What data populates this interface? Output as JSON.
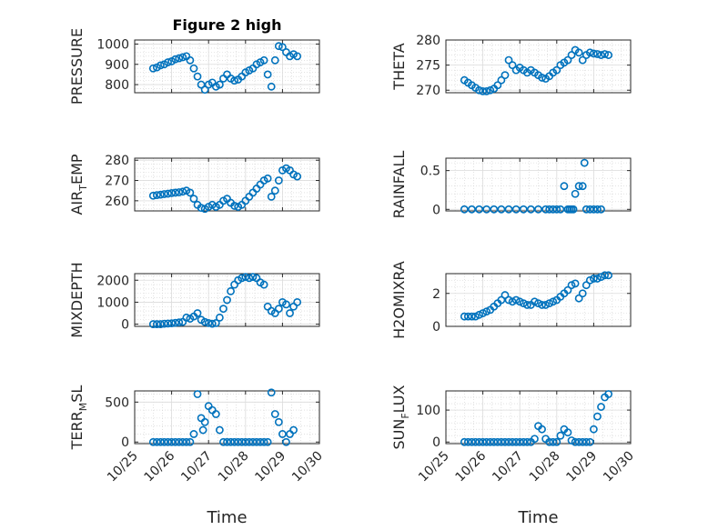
{
  "figure": {
    "title": "Figure 2 high"
  },
  "colors": {
    "marker": "#0072BD",
    "axes": "#262626",
    "grid": "#d0d0d0",
    "background": "#ffffff"
  },
  "chart_data": [
    {
      "type": "scatter",
      "title": "Figure 2 high",
      "ylabel": "PRESSURE",
      "ylabel_main": "PRESSURE",
      "ylabel_sub": "",
      "ylabel_tail": "",
      "xlabel": "",
      "xlim": [
        25,
        30
      ],
      "ylim": [
        760,
        1020
      ],
      "yticks": [
        800,
        900,
        1000
      ],
      "ytick_labels": [
        "800",
        "900",
        "1000"
      ],
      "xticks": [
        25,
        26,
        27,
        28,
        29,
        30
      ],
      "xtick_labels": [
        "10/25",
        "10/26",
        "10/27",
        "10/28",
        "10/29",
        "10/30"
      ],
      "show_xtick_labels": false,
      "grid": true,
      "x": [
        25.5,
        25.6,
        25.7,
        25.8,
        25.9,
        26.0,
        26.1,
        26.2,
        26.3,
        26.4,
        26.5,
        26.6,
        26.7,
        26.8,
        26.9,
        27.0,
        27.1,
        27.2,
        27.3,
        27.4,
        27.5,
        27.6,
        27.7,
        27.8,
        27.9,
        28.0,
        28.1,
        28.2,
        28.3,
        28.4,
        28.5,
        28.6,
        28.7,
        28.8,
        28.9,
        29.0,
        29.1,
        29.2,
        29.3,
        29.4
      ],
      "y": [
        880,
        885,
        895,
        900,
        910,
        915,
        925,
        930,
        935,
        940,
        920,
        880,
        840,
        800,
        775,
        800,
        810,
        790,
        800,
        830,
        850,
        830,
        820,
        825,
        840,
        860,
        870,
        880,
        900,
        910,
        920,
        850,
        790,
        920,
        990,
        985,
        960,
        940,
        950,
        940
      ]
    },
    {
      "type": "scatter",
      "title": "",
      "ylabel": "THETA",
      "ylabel_main": "THETA",
      "ylabel_sub": "",
      "ylabel_tail": "",
      "xlabel": "",
      "xlim": [
        25,
        30
      ],
      "ylim": [
        269.5,
        280
      ],
      "yticks": [
        270,
        275,
        280
      ],
      "ytick_labels": [
        "270",
        "275",
        "280"
      ],
      "xticks": [
        25,
        26,
        27,
        28,
        29,
        30
      ],
      "xtick_labels": [
        "10/25",
        "10/26",
        "10/27",
        "10/28",
        "10/29",
        "10/30"
      ],
      "show_xtick_labels": false,
      "grid": true,
      "x": [
        25.5,
        25.6,
        25.7,
        25.8,
        25.9,
        26.0,
        26.1,
        26.2,
        26.3,
        26.4,
        26.5,
        26.6,
        26.7,
        26.8,
        26.9,
        27.0,
        27.1,
        27.2,
        27.3,
        27.4,
        27.5,
        27.6,
        27.7,
        27.8,
        27.9,
        28.0,
        28.1,
        28.2,
        28.3,
        28.4,
        28.5,
        28.6,
        28.7,
        28.8,
        28.9,
        29.0,
        29.1,
        29.2,
        29.3,
        29.4
      ],
      "y": [
        272,
        271.5,
        271,
        270.5,
        270,
        269.8,
        269.8,
        270,
        270.3,
        271,
        272,
        273,
        276,
        275,
        274,
        274.5,
        274,
        273.5,
        274,
        273.5,
        273,
        272.5,
        272.3,
        272.8,
        273.5,
        274,
        275,
        275.5,
        276,
        277,
        278,
        277.5,
        276,
        277,
        277.5,
        277.3,
        277.2,
        277,
        277.2,
        277
      ]
    },
    {
      "type": "scatter",
      "title": "",
      "ylabel": "AIR_TEMP",
      "ylabel_main": "AIR",
      "ylabel_sub": "T",
      "ylabel_tail": "EMP",
      "xlabel": "",
      "xlim": [
        25,
        30
      ],
      "ylim": [
        255,
        281
      ],
      "yticks": [
        260,
        270,
        280
      ],
      "ytick_labels": [
        "260",
        "270",
        "280"
      ],
      "xticks": [
        25,
        26,
        27,
        28,
        29,
        30
      ],
      "xtick_labels": [
        "10/25",
        "10/26",
        "10/27",
        "10/28",
        "10/29",
        "10/30"
      ],
      "show_xtick_labels": false,
      "grid": true,
      "x": [
        25.5,
        25.6,
        25.7,
        25.8,
        25.9,
        26.0,
        26.1,
        26.2,
        26.3,
        26.4,
        26.5,
        26.6,
        26.7,
        26.8,
        26.9,
        27.0,
        27.1,
        27.2,
        27.3,
        27.4,
        27.5,
        27.6,
        27.7,
        27.8,
        27.9,
        28.0,
        28.1,
        28.2,
        28.3,
        28.4,
        28.5,
        28.6,
        28.7,
        28.8,
        28.9,
        29.0,
        29.1,
        29.2,
        29.3,
        29.4
      ],
      "y": [
        262.5,
        262.8,
        263,
        263.3,
        263.5,
        263.8,
        264,
        264.2,
        264.5,
        265,
        264,
        261,
        258,
        256.5,
        256,
        257,
        258,
        257,
        258,
        260,
        261,
        259,
        257.5,
        257,
        258,
        260,
        262,
        264,
        266,
        268,
        270,
        271,
        262,
        265,
        270,
        275,
        276,
        275,
        273,
        272
      ]
    },
    {
      "type": "scatter",
      "title": "",
      "ylabel": "RAINFALL",
      "ylabel_main": "RAINFALL",
      "ylabel_sub": "",
      "ylabel_tail": "",
      "xlabel": "",
      "xlim": [
        25,
        30
      ],
      "ylim": [
        -0.02,
        0.66
      ],
      "yticks": [
        0,
        0.5
      ],
      "ytick_labels": [
        "0",
        "0.5"
      ],
      "xticks": [
        25,
        26,
        27,
        28,
        29,
        30
      ],
      "xtick_labels": [
        "10/25",
        "10/26",
        "10/27",
        "10/28",
        "10/29",
        "10/30"
      ],
      "show_xtick_labels": false,
      "grid": true,
      "x": [
        25.5,
        25.7,
        25.9,
        26.1,
        26.3,
        26.5,
        26.7,
        26.9,
        27.1,
        27.3,
        27.5,
        27.7,
        27.8,
        27.9,
        28.0,
        28.1,
        28.2,
        28.3,
        28.35,
        28.4,
        28.45,
        28.5,
        28.6,
        28.7,
        28.75,
        28.8,
        28.9,
        29.0,
        29.1,
        29.2
      ],
      "y": [
        0,
        0,
        0,
        0,
        0,
        0,
        0,
        0,
        0,
        0,
        0,
        0,
        0,
        0,
        0,
        0,
        0.3,
        0,
        0,
        0,
        0,
        0.2,
        0.3,
        0.3,
        0.6,
        0,
        0,
        0,
        0,
        0
      ]
    },
    {
      "type": "scatter",
      "title": "",
      "ylabel": "MIXDEPTH",
      "ylabel_main": "MIXDEPTH",
      "ylabel_sub": "",
      "ylabel_tail": "",
      "xlabel": "",
      "xlim": [
        25,
        30
      ],
      "ylim": [
        -100,
        2300
      ],
      "yticks": [
        0,
        1000,
        2000
      ],
      "ytick_labels": [
        "0",
        "1000",
        "2000"
      ],
      "xticks": [
        25,
        26,
        27,
        28,
        29,
        30
      ],
      "xtick_labels": [
        "10/25",
        "10/26",
        "10/27",
        "10/28",
        "10/29",
        "10/30"
      ],
      "show_xtick_labels": false,
      "grid": true,
      "x": [
        25.5,
        25.6,
        25.7,
        25.8,
        25.9,
        26.0,
        26.1,
        26.2,
        26.3,
        26.4,
        26.5,
        26.6,
        26.7,
        26.8,
        26.9,
        27.0,
        27.1,
        27.2,
        27.3,
        27.4,
        27.5,
        27.6,
        27.7,
        27.8,
        27.9,
        28.0,
        28.1,
        28.2,
        28.3,
        28.4,
        28.5,
        28.6,
        28.7,
        28.8,
        28.9,
        29.0,
        29.1,
        29.2,
        29.3,
        29.4
      ],
      "y": [
        0,
        0,
        0,
        20,
        30,
        40,
        60,
        80,
        100,
        300,
        250,
        350,
        500,
        200,
        100,
        50,
        20,
        50,
        300,
        700,
        1100,
        1500,
        1800,
        2000,
        2100,
        2150,
        2100,
        2150,
        2100,
        1900,
        1800,
        800,
        600,
        500,
        700,
        1000,
        900,
        500,
        800,
        1000
      ]
    },
    {
      "type": "scatter",
      "title": "",
      "ylabel": "H2OMIXRA",
      "ylabel_main": "H2OMIXRA",
      "ylabel_sub": "",
      "ylabel_tail": "",
      "xlabel": "",
      "xlim": [
        25,
        30
      ],
      "ylim": [
        0,
        3.2
      ],
      "yticks": [
        0,
        2
      ],
      "ytick_labels": [
        "0",
        "2"
      ],
      "xticks": [
        25,
        26,
        27,
        28,
        29,
        30
      ],
      "xtick_labels": [
        "10/25",
        "10/26",
        "10/27",
        "10/28",
        "10/29",
        "10/30"
      ],
      "show_xtick_labels": false,
      "grid": true,
      "x": [
        25.5,
        25.6,
        25.7,
        25.8,
        25.9,
        26.0,
        26.1,
        26.2,
        26.3,
        26.4,
        26.5,
        26.6,
        26.7,
        26.8,
        26.9,
        27.0,
        27.1,
        27.2,
        27.3,
        27.4,
        27.5,
        27.6,
        27.7,
        27.8,
        27.9,
        28.0,
        28.1,
        28.2,
        28.3,
        28.4,
        28.5,
        28.6,
        28.7,
        28.8,
        28.9,
        29.0,
        29.1,
        29.2,
        29.3,
        29.4
      ],
      "y": [
        0.6,
        0.6,
        0.6,
        0.6,
        0.7,
        0.8,
        0.9,
        1.0,
        1.2,
        1.4,
        1.6,
        1.9,
        1.6,
        1.5,
        1.6,
        1.5,
        1.4,
        1.3,
        1.3,
        1.5,
        1.4,
        1.3,
        1.3,
        1.4,
        1.5,
        1.6,
        1.8,
        2.0,
        2.2,
        2.5,
        2.6,
        1.7,
        2.0,
        2.5,
        2.8,
        2.9,
        2.9,
        3.0,
        3.1,
        3.1
      ]
    },
    {
      "type": "scatter",
      "title": "",
      "ylabel": "TERR_MSL",
      "ylabel_main": "TERR",
      "ylabel_sub": "M",
      "ylabel_tail": "SL",
      "xlabel": "Time",
      "xlim": [
        25,
        30
      ],
      "ylim": [
        -20,
        640
      ],
      "yticks": [
        0,
        500
      ],
      "ytick_labels": [
        "0",
        "500"
      ],
      "xticks": [
        25,
        26,
        27,
        28,
        29,
        30
      ],
      "xtick_labels": [
        "10/25",
        "10/26",
        "10/27",
        "10/28",
        "10/29",
        "10/30"
      ],
      "show_xtick_labels": true,
      "grid": true,
      "x": [
        25.5,
        25.6,
        25.7,
        25.8,
        25.9,
        26.0,
        26.1,
        26.2,
        26.3,
        26.4,
        26.5,
        26.6,
        26.7,
        26.8,
        26.85,
        26.9,
        27.0,
        27.1,
        27.2,
        27.3,
        27.4,
        27.5,
        27.6,
        27.7,
        27.8,
        27.9,
        28.0,
        28.1,
        28.2,
        28.3,
        28.4,
        28.5,
        28.6,
        28.7,
        28.8,
        28.9,
        29.0,
        29.1,
        29.2,
        29.3
      ],
      "y": [
        0,
        0,
        0,
        0,
        0,
        0,
        0,
        0,
        0,
        0,
        0,
        100,
        600,
        300,
        150,
        250,
        450,
        400,
        350,
        150,
        0,
        0,
        0,
        0,
        0,
        0,
        0,
        0,
        0,
        0,
        0,
        0,
        0,
        620,
        350,
        250,
        100,
        0,
        100,
        150
      ]
    },
    {
      "type": "scatter",
      "title": "",
      "ylabel": "SUN_FLUX",
      "ylabel_main": "SUN",
      "ylabel_sub": "F",
      "ylabel_tail": "LUX",
      "xlabel": "Time",
      "xlim": [
        25,
        30
      ],
      "ylim": [
        -5,
        160
      ],
      "yticks": [
        0,
        100
      ],
      "ytick_labels": [
        "0",
        "100"
      ],
      "xticks": [
        25,
        26,
        27,
        28,
        29,
        30
      ],
      "xtick_labels": [
        "10/25",
        "10/26",
        "10/27",
        "10/28",
        "10/29",
        "10/30"
      ],
      "show_xtick_labels": true,
      "grid": true,
      "x": [
        25.5,
        25.6,
        25.7,
        25.8,
        25.9,
        26.0,
        26.1,
        26.2,
        26.3,
        26.4,
        26.5,
        26.6,
        26.7,
        26.8,
        26.9,
        27.0,
        27.1,
        27.2,
        27.3,
        27.4,
        27.5,
        27.6,
        27.7,
        27.8,
        27.9,
        28.0,
        28.1,
        28.2,
        28.3,
        28.4,
        28.5,
        28.6,
        28.7,
        28.8,
        28.9,
        29.0,
        29.1,
        29.2,
        29.3,
        29.4
      ],
      "y": [
        0,
        0,
        0,
        0,
        0,
        0,
        0,
        0,
        0,
        0,
        0,
        0,
        0,
        0,
        0,
        0,
        0,
        0,
        0,
        10,
        50,
        40,
        10,
        0,
        0,
        0,
        20,
        40,
        30,
        5,
        0,
        0,
        0,
        0,
        0,
        40,
        80,
        110,
        140,
        150
      ]
    }
  ]
}
